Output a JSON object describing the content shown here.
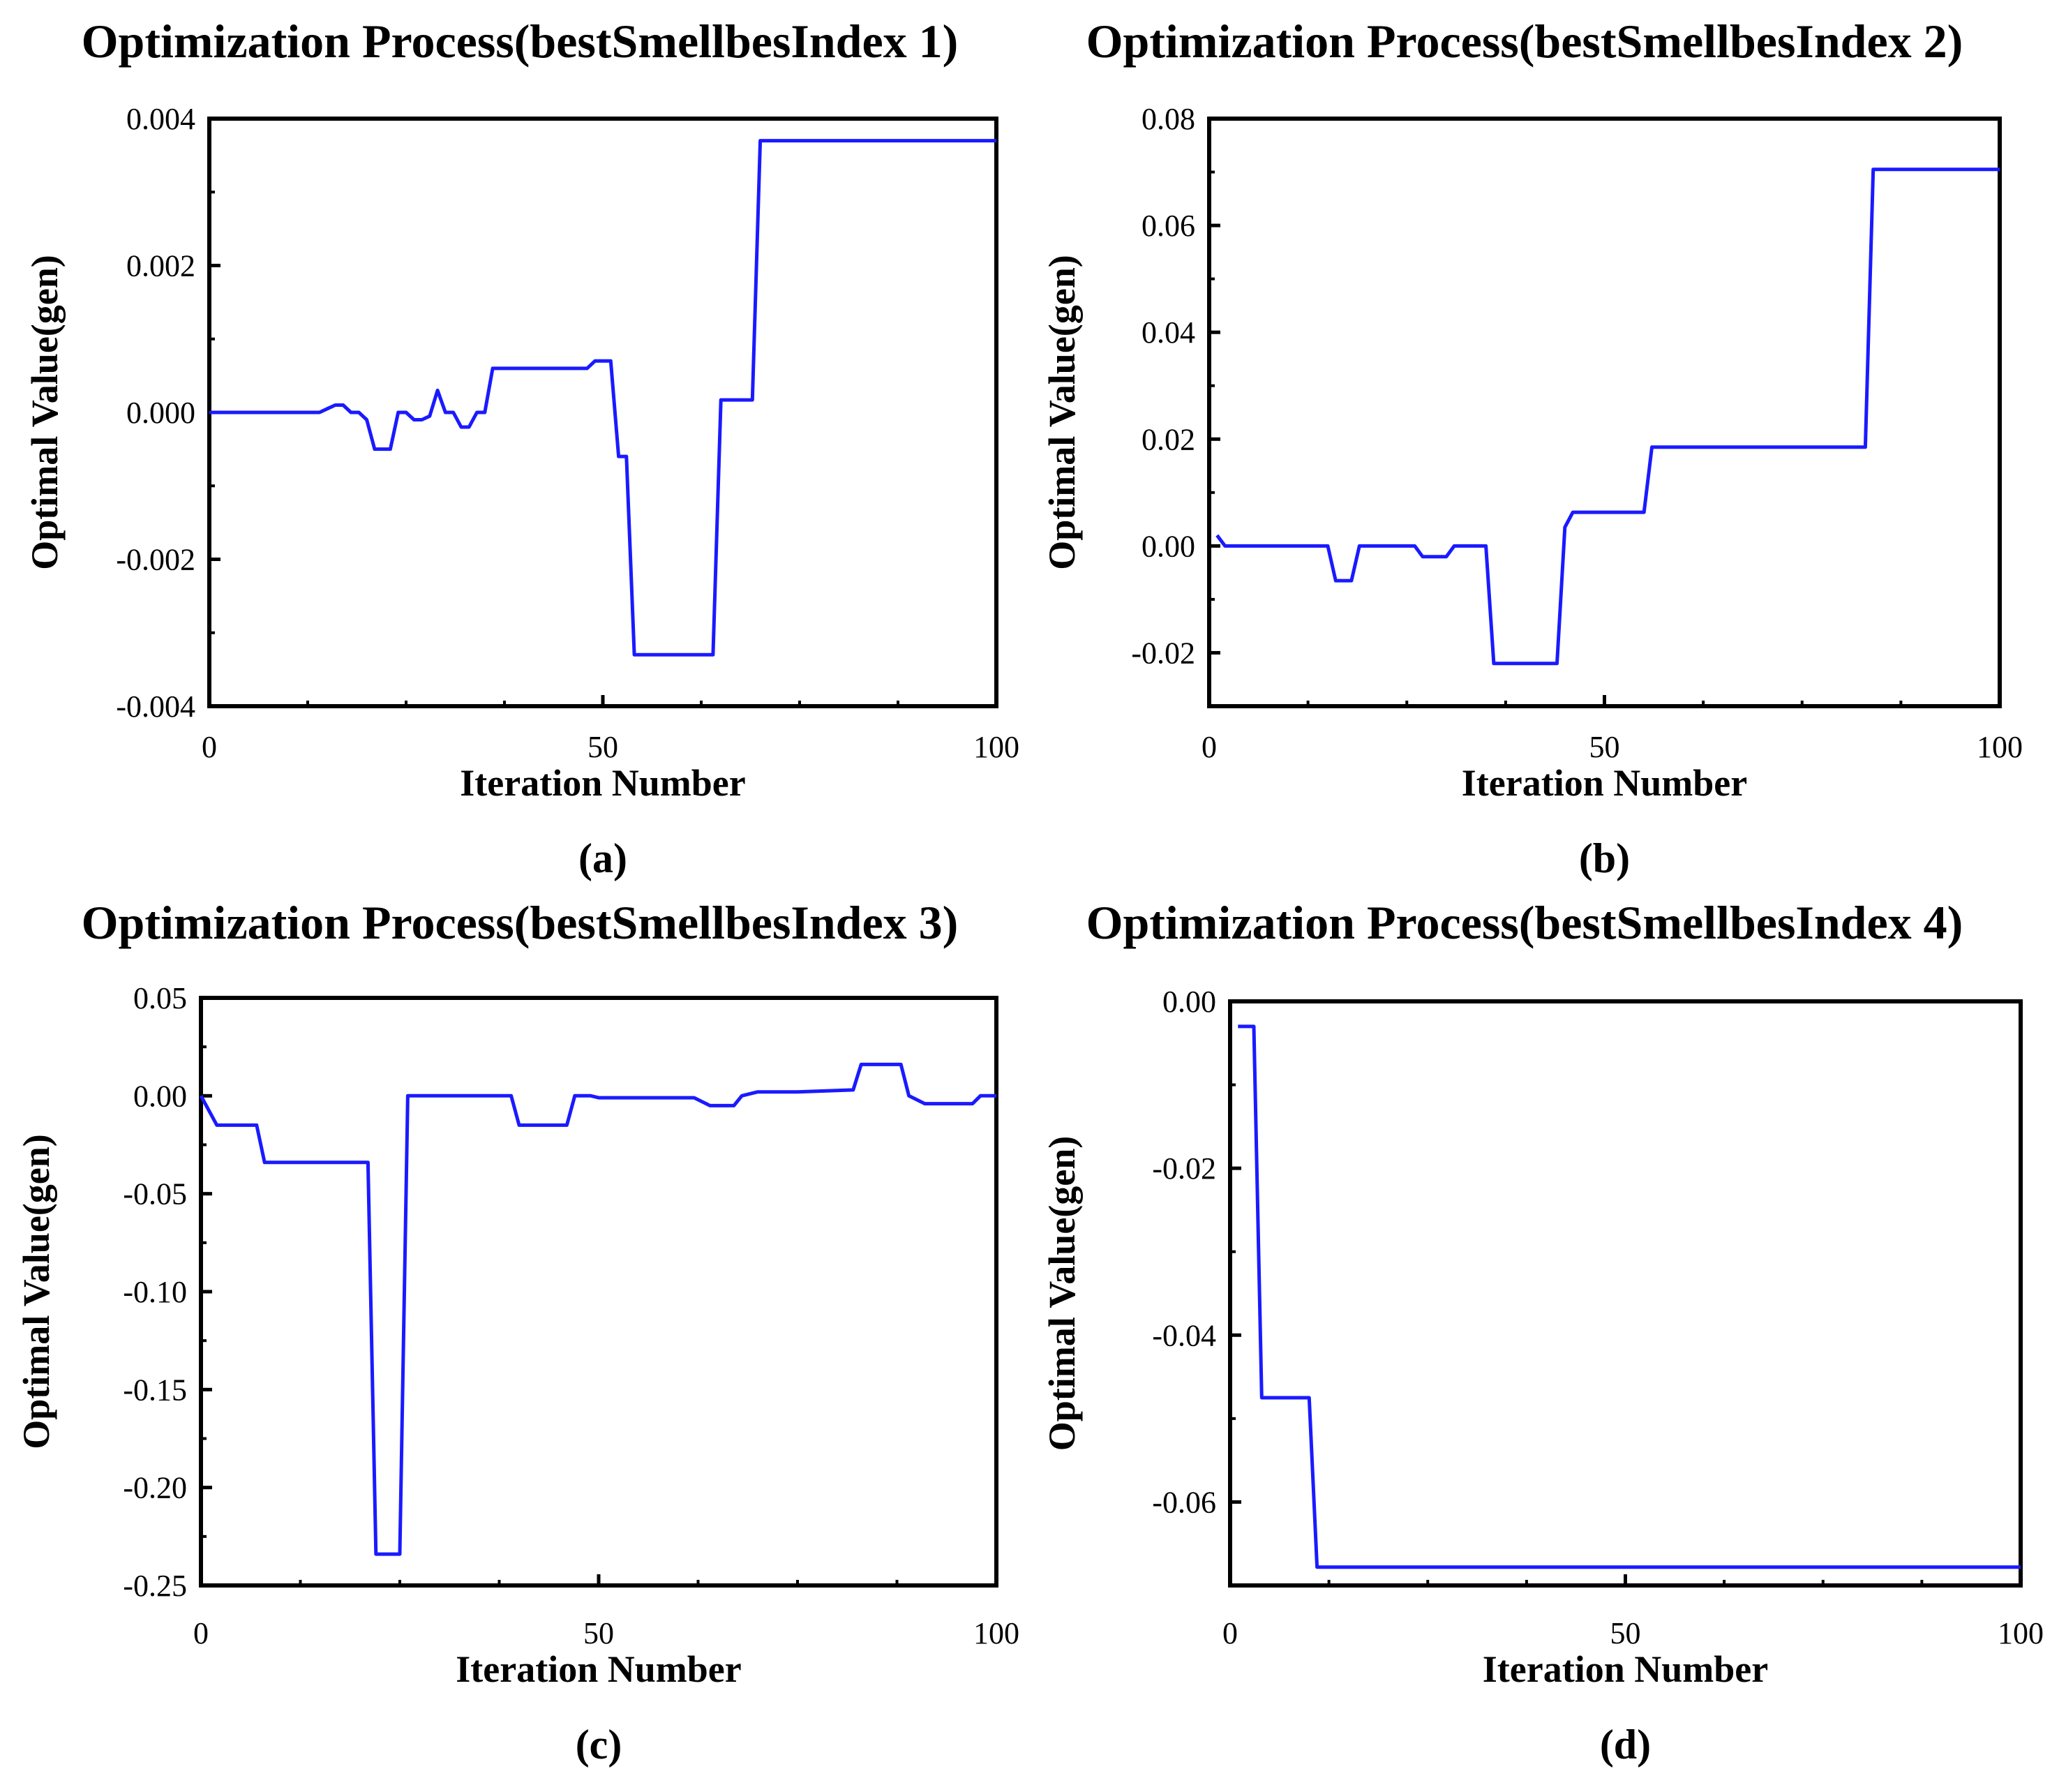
{
  "colors": {
    "line": "#1a1aff",
    "axes": "#000000"
  },
  "chart_data": [
    {
      "id": "a",
      "type": "line",
      "panel_label": "(a)",
      "title": "Optimization Process(bestSmellbesIndex 1)",
      "xlabel": "Iteration Number",
      "ylabel": "Optimal Value(gen)",
      "xlim": [
        0,
        100
      ],
      "ylim": [
        -0.004,
        0.004
      ],
      "xticks": [
        0,
        50,
        100
      ],
      "xtick_labels": [
        "0",
        "50",
        "100"
      ],
      "yticks": [
        0.004,
        0.002,
        0.0,
        -0.002,
        -0.004
      ],
      "ytick_labels": [
        "0.004",
        "0.002",
        "0.000",
        "-0.002",
        "-0.004"
      ],
      "series": [
        {
          "name": "bestSmellbesIndex 1",
          "x": [
            0,
            14,
            15,
            16,
            17,
            18,
            19,
            20,
            21,
            22,
            23,
            24,
            25,
            26,
            27,
            28,
            29,
            30,
            31,
            32,
            33,
            34,
            35,
            36,
            37,
            48,
            49,
            51,
            52,
            53,
            54,
            63,
            64,
            65,
            69,
            70,
            100
          ],
          "y": [
            0,
            0,
            5e-05,
            0.0001,
            0.0001,
            0,
            0,
            -0.0001,
            -0.0005,
            -0.0005,
            -0.0005,
            0,
            0,
            -0.0001,
            -0.0001,
            -5e-05,
            0.0003,
            0,
            0,
            -0.0002,
            -0.0002,
            0,
            0,
            0.0006,
            0.0006,
            0.0006,
            0.0007,
            0.0007,
            -0.0006,
            -0.0006,
            -0.0033,
            -0.0033,
            -0.0033,
            0.00017,
            0.00017,
            0.0037,
            0.0037
          ]
        }
      ]
    },
    {
      "id": "b",
      "type": "line",
      "panel_label": "(b)",
      "title": "Optimization Process(bestSmellbesIndex 2)",
      "xlabel": "Iteration Number",
      "ylabel": "Optimal Value(gen)",
      "xlim": [
        0,
        100
      ],
      "ylim": [
        -0.03,
        0.08
      ],
      "xticks": [
        0,
        50,
        100
      ],
      "xtick_labels": [
        "0",
        "50",
        "100"
      ],
      "yticks": [
        0.08,
        0.06,
        0.04,
        0.02,
        0.0,
        -0.02
      ],
      "ytick_labels": [
        "0.08",
        "0.06",
        "0.04",
        "0.02",
        "0.00",
        "-0.02"
      ],
      "series": [
        {
          "name": "bestSmellbesIndex 2",
          "x": [
            1,
            2,
            3,
            15,
            16,
            18,
            19,
            26,
            27,
            30,
            31,
            35,
            36,
            44,
            45,
            46,
            55,
            56,
            83,
            84,
            100
          ],
          "y": [
            0.002,
            0,
            0,
            0,
            -0.0065,
            -0.0065,
            0,
            0,
            -0.002,
            -0.002,
            0,
            0,
            -0.022,
            -0.022,
            0.0035,
            0.0063,
            0.0063,
            0.0185,
            0.0185,
            0.0705,
            0.0705
          ]
        }
      ]
    },
    {
      "id": "c",
      "type": "line",
      "panel_label": "(c)",
      "title": "Optimization Process(bestSmellbesIndex 3)",
      "xlabel": "Iteration Number",
      "ylabel": "Optimal Value(gen)",
      "xlim": [
        0,
        100
      ],
      "ylim": [
        -0.25,
        0.05
      ],
      "xticks": [
        0,
        50,
        100
      ],
      "xtick_labels": [
        "0",
        "50",
        "100"
      ],
      "yticks": [
        0.05,
        0.0,
        -0.05,
        -0.1,
        -0.15,
        -0.2,
        -0.25
      ],
      "ytick_labels": [
        "0.05",
        "0.00",
        "-0.05",
        "-0.10",
        "-0.15",
        "-0.20",
        "-0.25"
      ],
      "series": [
        {
          "name": "bestSmellbesIndex 3",
          "x": [
            0,
            2,
            7,
            8,
            21,
            22,
            25,
            26,
            34,
            39,
            40,
            46,
            47,
            49,
            50,
            52,
            62,
            64,
            67,
            68,
            70,
            75,
            82,
            83,
            88,
            89,
            91,
            97,
            98,
            100
          ],
          "y": [
            0,
            -0.015,
            -0.015,
            -0.034,
            -0.034,
            -0.234,
            -0.234,
            0,
            0,
            0,
            -0.015,
            -0.015,
            0,
            0,
            -0.001,
            -0.001,
            -0.001,
            -0.005,
            -0.005,
            0,
            0.002,
            0.002,
            0.003,
            0.016,
            0.016,
            0,
            -0.004,
            -0.004,
            0,
            0
          ]
        }
      ]
    },
    {
      "id": "d",
      "type": "line",
      "panel_label": "(d)",
      "title": "Optimization Process(bestSmellbesIndex 4)",
      "xlabel": "Iteration Number",
      "ylabel": "Optimal Value(gen)",
      "xlim": [
        0,
        100
      ],
      "ylim": [
        -0.07,
        0.0
      ],
      "xticks": [
        0,
        50,
        100
      ],
      "xtick_labels": [
        "0",
        "50",
        "100"
      ],
      "yticks": [
        0.0,
        -0.02,
        -0.04,
        -0.06
      ],
      "ytick_labels": [
        "0.00",
        "-0.02",
        "-0.04",
        "-0.06"
      ],
      "series": [
        {
          "name": "bestSmellbesIndex 4",
          "x": [
            1,
            3,
            4,
            10,
            11,
            100
          ],
          "y": [
            -0.003,
            -0.003,
            -0.0475,
            -0.0475,
            -0.0678,
            -0.0678
          ]
        }
      ]
    }
  ]
}
